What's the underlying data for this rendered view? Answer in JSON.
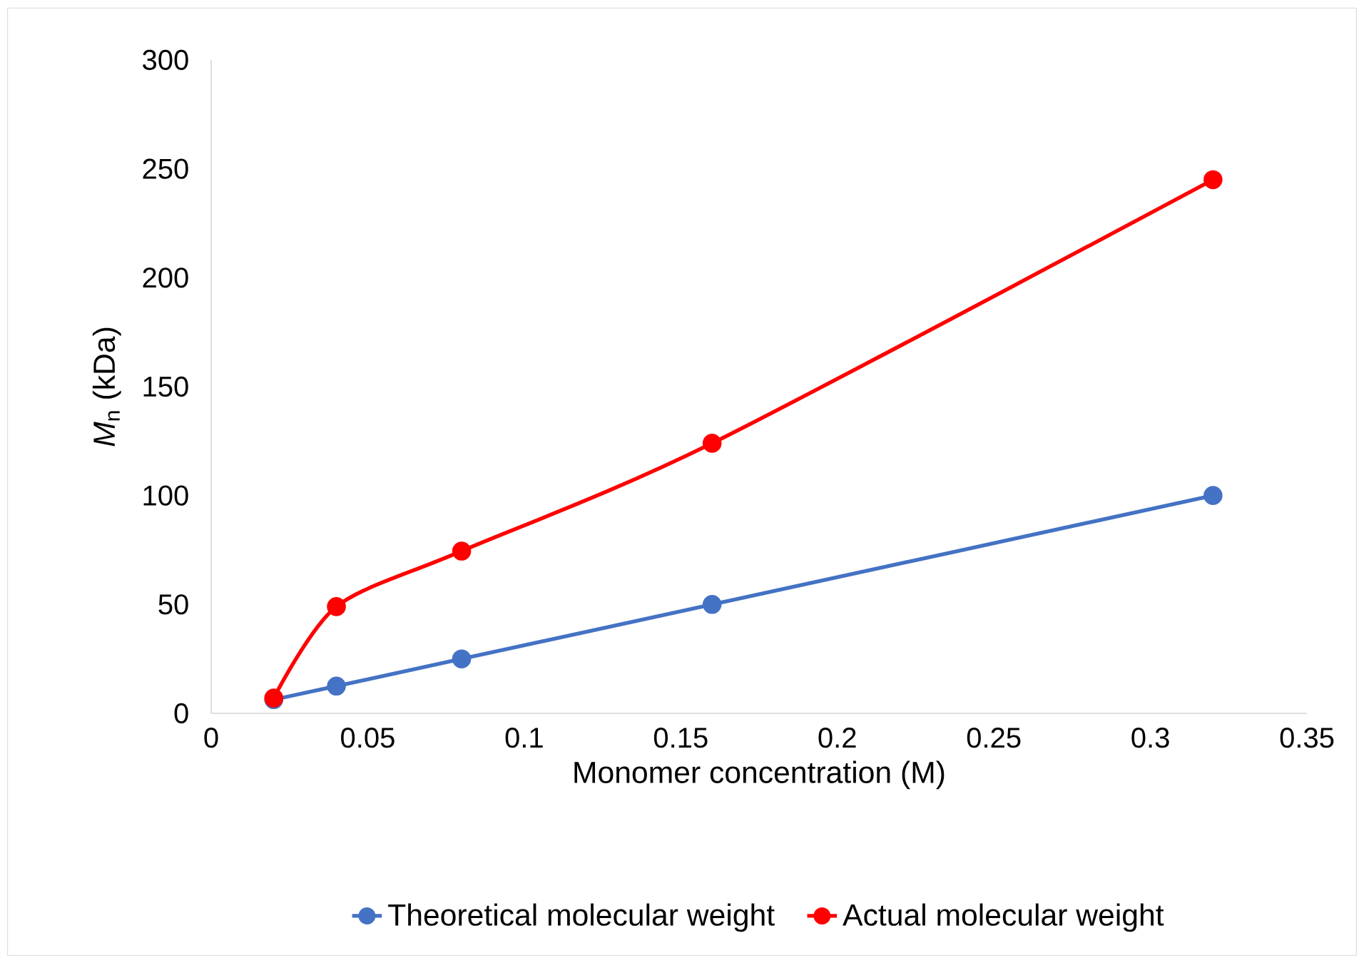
{
  "chart_data": {
    "type": "line",
    "xlabel": "Monomer concentration (M)",
    "ylabel": "*M*$_{n}$  (kDa)",
    "x": [
      0.02,
      0.04,
      0.08,
      0.16,
      0.32
    ],
    "series": [
      {
        "name": "Theoretical molecular weight",
        "color": "#4472c4",
        "values": [
          6.3,
          12.5,
          25,
          50,
          100
        ]
      },
      {
        "name": "Actual molecular weight",
        "color": "#ff0000",
        "values": [
          7,
          49,
          74.5,
          124,
          245
        ]
      }
    ],
    "xlim": [
      0,
      0.35
    ],
    "xticks": [
      0,
      0.05,
      0.1,
      0.15,
      0.2,
      0.25,
      0.3,
      0.35
    ],
    "ylim": [
      0,
      300
    ],
    "yticks": [
      0,
      50,
      100,
      150,
      200,
      250,
      300
    ],
    "grid": false,
    "legend": "bottom",
    "marker": "circle",
    "line_style": "solid"
  }
}
